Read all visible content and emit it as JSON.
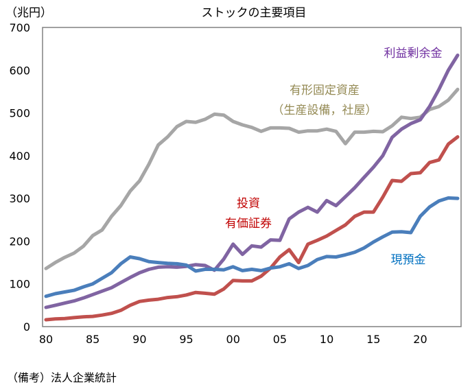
{
  "chart_data": {
    "type": "line",
    "title": "ストックの主要項目",
    "ylabel": "（兆円）",
    "note": "（備考）法人企業統計",
    "ylim": [
      0,
      700
    ],
    "yticks": [
      0,
      100,
      200,
      300,
      400,
      500,
      600,
      700
    ],
    "xlim": [
      1980,
      2024
    ],
    "xticks": [
      1980,
      1985,
      1990,
      1995,
      2000,
      2005,
      2010,
      2015,
      2020
    ],
    "xtick_labels": [
      "80",
      "85",
      "90",
      "95",
      "00",
      "05",
      "10",
      "15",
      "20"
    ],
    "grid": false,
    "x": [
      1980,
      1981,
      1982,
      1983,
      1984,
      1985,
      1986,
      1987,
      1988,
      1989,
      1990,
      1991,
      1992,
      1993,
      1994,
      1995,
      1996,
      1997,
      1998,
      1999,
      2000,
      2001,
      2002,
      2003,
      2004,
      2005,
      2006,
      2007,
      2008,
      2009,
      2010,
      2011,
      2012,
      2013,
      2014,
      2015,
      2016,
      2017,
      2018,
      2019,
      2020,
      2021,
      2022,
      2023,
      2024
    ],
    "series": [
      {
        "name": "有形固定資産",
        "name_line2": "（生産設備，社屋）",
        "color": "#a6a6a6",
        "label_color": "#948a54",
        "values": [
          136,
          150,
          162,
          172,
          188,
          213,
          226,
          258,
          283,
          317,
          341,
          380,
          425,
          444,
          468,
          480,
          478,
          485,
          497,
          495,
          480,
          472,
          466,
          457,
          465,
          465,
          464,
          455,
          458,
          458,
          462,
          457,
          428,
          455,
          455,
          457,
          456,
          470,
          490,
          487,
          490,
          508,
          515,
          530,
          555
        ]
      },
      {
        "name": "利益剰余金",
        "color": "#8064a2",
        "label_color": "#7030a0",
        "values": [
          45,
          50,
          55,
          60,
          67,
          75,
          83,
          91,
          103,
          115,
          126,
          134,
          139,
          140,
          139,
          141,
          145,
          143,
          132,
          158,
          193,
          169,
          189,
          186,
          203,
          202,
          252,
          268,
          279,
          268,
          295,
          283,
          304,
          325,
          349,
          373,
          400,
          443,
          462,
          475,
          484,
          515,
          555,
          600,
          635
        ]
      },
      {
        "name": "投資",
        "name_line2": "有価証券",
        "color": "#c0504d",
        "label_color": "#c00000",
        "values": [
          16,
          18,
          19,
          21,
          23,
          24,
          27,
          31,
          38,
          50,
          59,
          62,
          64,
          68,
          70,
          74,
          80,
          78,
          76,
          88,
          108,
          107,
          107,
          118,
          137,
          163,
          180,
          150,
          193,
          202,
          212,
          225,
          238,
          258,
          268,
          268,
          303,
          342,
          340,
          358,
          360,
          384,
          390,
          427,
          444
        ]
      },
      {
        "name": "現預金",
        "color": "#4a7ebb",
        "label_color": "#0070c0",
        "values": [
          71,
          77,
          81,
          85,
          93,
          100,
          113,
          126,
          147,
          163,
          159,
          152,
          150,
          148,
          147,
          144,
          130,
          134,
          134,
          133,
          140,
          131,
          134,
          131,
          137,
          140,
          147,
          136,
          143,
          157,
          164,
          163,
          168,
          174,
          184,
          198,
          210,
          221,
          222,
          220,
          258,
          280,
          294,
          301,
          300
        ]
      }
    ]
  }
}
